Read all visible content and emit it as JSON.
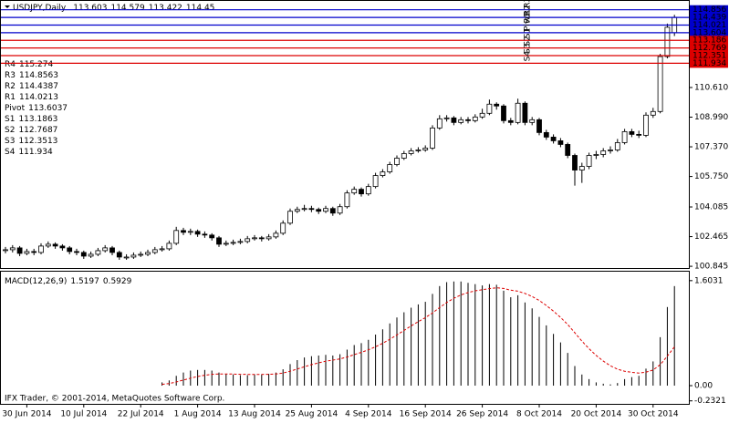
{
  "chart_data": {
    "type": "candlestick",
    "symbol": "USDJPY,Daily",
    "categories": [
      null,
      null,
      null,
      "30 Jun 2014",
      null,
      null,
      null,
      null,
      null,
      null,
      null,
      "10 Jul 2014",
      null,
      null,
      null,
      null,
      null,
      null,
      null,
      "22 Jul 2014",
      null,
      null,
      null,
      null,
      null,
      null,
      null,
      "1 Aug 2014",
      null,
      null,
      null,
      null,
      null,
      null,
      null,
      "13 Aug 2014",
      null,
      null,
      null,
      null,
      null,
      null,
      null,
      "25 Aug 2014",
      null,
      null,
      null,
      null,
      null,
      null,
      null,
      "4 Sep 2014",
      null,
      null,
      null,
      null,
      null,
      null,
      null,
      "16 Sep 2014",
      null,
      null,
      null,
      null,
      null,
      null,
      null,
      "26 Sep 2014",
      null,
      null,
      null,
      null,
      null,
      null,
      null,
      "8 Oct 2014",
      null,
      null,
      null,
      null,
      null,
      null,
      null,
      "20 Oct 2014",
      null,
      null,
      null,
      null,
      null,
      null,
      null,
      "30 Oct 2014",
      null,
      null,
      null
    ],
    "open": [
      101.7,
      101.75,
      101.85,
      101.55,
      101.65,
      101.6,
      101.95,
      102.05,
      101.95,
      101.85,
      101.65,
      101.6,
      101.4,
      101.5,
      101.7,
      101.85,
      101.6,
      101.35,
      101.35,
      101.45,
      101.5,
      101.6,
      101.75,
      101.8,
      102.1,
      102.8,
      102.7,
      102.75,
      102.6,
      102.55,
      102.4,
      102.05,
      102.1,
      102.15,
      102.2,
      102.35,
      102.4,
      102.35,
      102.45,
      102.65,
      103.2,
      103.85,
      103.95,
      104.0,
      103.95,
      103.85,
      104.0,
      103.75,
      104.1,
      104.85,
      105.05,
      104.8,
      105.2,
      105.8,
      106.0,
      106.4,
      106.75,
      107.0,
      107.15,
      107.2,
      107.3,
      108.4,
      108.9,
      108.95,
      108.7,
      108.85,
      108.8,
      109.0,
      109.2,
      109.7,
      109.6,
      108.8,
      108.7,
      109.75,
      108.7,
      108.85,
      108.15,
      107.9,
      107.7,
      107.5,
      106.9,
      106.1,
      106.3,
      106.9,
      106.95,
      107.15,
      107.2,
      107.6,
      108.2,
      108.05,
      108.0,
      109.1,
      109.3,
      112.3,
      113.603
    ],
    "close": [
      101.75,
      101.85,
      101.55,
      101.65,
      101.6,
      101.95,
      102.05,
      101.95,
      101.85,
      101.65,
      101.6,
      101.4,
      101.5,
      101.7,
      101.85,
      101.6,
      101.35,
      101.35,
      101.45,
      101.5,
      101.6,
      101.75,
      101.8,
      102.1,
      102.8,
      102.7,
      102.75,
      102.6,
      102.55,
      102.4,
      102.05,
      102.1,
      102.15,
      102.2,
      102.35,
      102.4,
      102.35,
      102.45,
      102.65,
      103.2,
      103.85,
      103.95,
      104.0,
      103.95,
      103.85,
      104.0,
      103.75,
      104.1,
      104.85,
      105.05,
      104.8,
      105.2,
      105.8,
      106.0,
      106.4,
      106.75,
      107.0,
      107.15,
      107.2,
      107.3,
      108.4,
      108.9,
      108.95,
      108.7,
      108.85,
      108.8,
      109.0,
      109.2,
      109.7,
      109.6,
      108.8,
      108.7,
      109.75,
      108.7,
      108.85,
      108.15,
      107.9,
      107.7,
      107.5,
      106.9,
      106.1,
      106.3,
      106.9,
      106.95,
      107.15,
      107.2,
      107.6,
      108.2,
      108.05,
      108.0,
      109.1,
      109.3,
      112.3,
      113.9,
      114.45
    ],
    "high": [
      101.9,
      102.0,
      101.95,
      101.8,
      101.8,
      102.1,
      102.2,
      102.15,
      102.05,
      101.95,
      101.8,
      101.7,
      101.65,
      101.85,
      102.0,
      101.95,
      101.7,
      101.5,
      101.6,
      101.65,
      101.75,
      101.9,
      101.95,
      102.25,
      103.0,
      102.95,
      102.9,
      102.85,
      102.75,
      102.65,
      102.5,
      102.25,
      102.3,
      102.35,
      102.5,
      102.55,
      102.5,
      102.6,
      102.8,
      103.35,
      104.0,
      104.1,
      104.2,
      104.15,
      104.05,
      104.15,
      104.1,
      104.25,
      105.0,
      105.2,
      105.15,
      105.35,
      105.95,
      106.15,
      106.55,
      106.9,
      107.15,
      107.3,
      107.35,
      107.45,
      108.55,
      109.1,
      109.1,
      109.05,
      109.0,
      109.0,
      109.15,
      109.45,
      109.95,
      109.8,
      109.7,
      108.95,
      110.0,
      109.85,
      109.0,
      108.95,
      108.3,
      108.05,
      107.85,
      107.6,
      107.0,
      106.5,
      107.05,
      107.15,
      107.3,
      107.4,
      107.8,
      108.35,
      108.35,
      108.25,
      109.25,
      109.5,
      112.45,
      114.1,
      114.579
    ],
    "low": [
      101.55,
      101.6,
      101.4,
      101.45,
      101.45,
      101.5,
      101.85,
      101.8,
      101.7,
      101.5,
      101.45,
      101.25,
      101.3,
      101.4,
      101.6,
      101.45,
      101.2,
      101.2,
      101.25,
      101.35,
      101.4,
      101.5,
      101.65,
      101.7,
      102.0,
      102.55,
      102.55,
      102.45,
      102.4,
      102.25,
      101.9,
      101.95,
      102.0,
      102.05,
      102.1,
      102.25,
      102.2,
      102.25,
      102.35,
      102.55,
      103.1,
      103.75,
      103.85,
      103.8,
      103.7,
      103.75,
      103.6,
      103.65,
      104.0,
      104.75,
      104.65,
      104.7,
      105.1,
      105.7,
      105.9,
      106.3,
      106.65,
      106.9,
      107.05,
      107.1,
      107.2,
      108.3,
      108.75,
      108.55,
      108.6,
      108.65,
      108.7,
      108.9,
      109.1,
      109.4,
      108.65,
      108.55,
      108.6,
      108.55,
      108.55,
      108.0,
      107.75,
      107.55,
      107.35,
      106.75,
      105.25,
      105.4,
      106.15,
      106.7,
      106.8,
      107.0,
      107.1,
      107.5,
      107.9,
      107.85,
      107.9,
      108.95,
      109.2,
      112.2,
      113.422
    ],
    "up_color": "#ffffff",
    "down_color": "#000000",
    "ylim": [
      100.75,
      115.24
    ],
    "yticks": [
      100.845,
      102.465,
      104.085,
      {
        "value": 105.75,
        "label": "105.750"
      },
      {
        "value": 107.37,
        "label": "107.370"
      },
      {
        "value": 108.99,
        "label": "108.990"
      },
      {
        "value": 110.61,
        "label": "110.610"
      }
    ],
    "pivots": [
      {
        "name": "R4",
        "value": 115.274,
        "color": "#0000cc"
      },
      {
        "name": "R3",
        "value": 114.8563,
        "color": "#0000cc"
      },
      {
        "name": "R2",
        "value": 114.4387,
        "color": "#0000cc"
      },
      {
        "name": "R1",
        "value": 114.0213,
        "color": "#0000cc"
      },
      {
        "name": "Pivot",
        "value": 113.6037,
        "color": "#0000cc"
      },
      {
        "name": "S1",
        "value": 113.1863,
        "color": "#dd0000"
      },
      {
        "name": "S2",
        "value": 112.7687,
        "color": "#dd0000"
      },
      {
        "name": "S3",
        "value": 112.3513,
        "color": "#dd0000"
      },
      {
        "name": "S4",
        "value": 111.934,
        "color": "#dd0000"
      }
    ],
    "pivot_ticks": [
      {
        "value": 114.8563,
        "label": "114.856"
      },
      {
        "value": 114.4387,
        "label": "114.439"
      },
      {
        "value": 114.0213,
        "label": "114.021"
      },
      {
        "value": 113.6037,
        "label": "113.604"
      },
      {
        "value": 113.1863,
        "label": "113.186"
      },
      {
        "value": 112.7687,
        "label": "112.769"
      },
      {
        "value": 112.3513,
        "label": "112.351"
      },
      111.934
    ],
    "indicator": {
      "name": "MACD(12,26,9)",
      "signal_color": "#dd0000",
      "histogram": [
        null,
        null,
        null,
        null,
        null,
        null,
        null,
        null,
        null,
        null,
        null,
        null,
        null,
        null,
        null,
        null,
        null,
        null,
        null,
        null,
        null,
        null,
        0.05,
        0.08,
        0.15,
        0.2,
        0.23,
        0.24,
        0.24,
        0.23,
        0.2,
        0.18,
        0.17,
        0.16,
        0.16,
        0.17,
        0.17,
        0.18,
        0.2,
        0.25,
        0.33,
        0.39,
        0.43,
        0.45,
        0.46,
        0.47,
        0.46,
        0.48,
        0.55,
        0.62,
        0.65,
        0.7,
        0.78,
        0.86,
        0.95,
        1.04,
        1.12,
        1.19,
        1.24,
        1.28,
        1.4,
        1.52,
        1.58,
        1.59,
        1.59,
        1.57,
        1.55,
        1.53,
        1.55,
        1.54,
        1.45,
        1.35,
        1.38,
        1.27,
        1.18,
        1.05,
        0.92,
        0.79,
        0.66,
        0.5,
        0.3,
        0.17,
        0.1,
        0.05,
        0.03,
        0.02,
        0.04,
        0.1,
        0.13,
        0.15,
        0.26,
        0.37,
        0.74,
        1.2,
        1.5197
      ],
      "signal": [
        null,
        null,
        null,
        null,
        null,
        null,
        null,
        null,
        null,
        null,
        null,
        null,
        null,
        null,
        null,
        null,
        null,
        null,
        null,
        null,
        null,
        null,
        0.02,
        0.032,
        0.056,
        0.085,
        0.114,
        0.139,
        0.159,
        0.173,
        0.178,
        0.179,
        0.177,
        0.173,
        0.171,
        0.171,
        0.171,
        0.173,
        0.178,
        0.193,
        0.22,
        0.254,
        0.289,
        0.321,
        0.349,
        0.373,
        0.39,
        0.408,
        0.436,
        0.473,
        0.508,
        0.547,
        0.593,
        0.646,
        0.707,
        0.774,
        0.843,
        0.912,
        0.978,
        1.038,
        1.11,
        1.192,
        1.27,
        1.334,
        1.385,
        1.422,
        1.448,
        1.464,
        1.481,
        1.493,
        1.484,
        1.457,
        1.442,
        1.408,
        1.362,
        1.3,
        1.224,
        1.137,
        1.042,
        0.934,
        0.807,
        0.68,
        0.564,
        0.461,
        0.375,
        0.304,
        0.251,
        0.221,
        0.203,
        0.192,
        0.206,
        0.239,
        0.32,
        0.45,
        0.5929
      ],
      "ylim": [
        -0.25,
        1.74
      ],
      "yticks": [
        1.6031,
        {
          "value": 0,
          "label": "0.00"
        },
        -0.2321
      ]
    },
    "copyright": "IFX Trader, © 2001-2014, MetaQuotes Software Corp."
  }
}
